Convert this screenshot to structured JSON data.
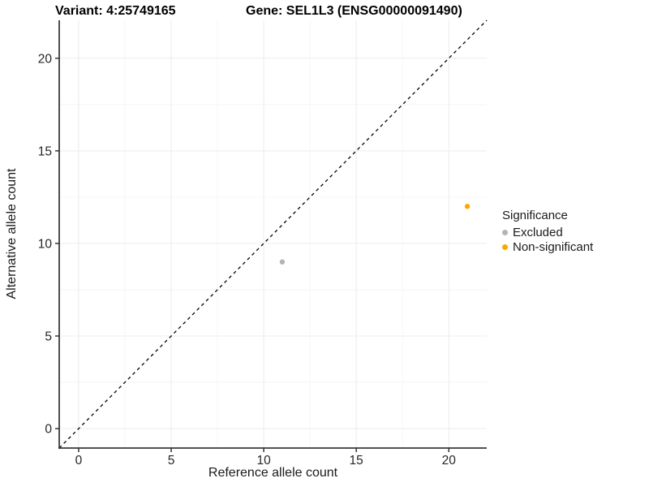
{
  "titles": {
    "variant": "Variant: 4:25749165",
    "gene": "Gene: SEL1L3 (ENSG00000091490)"
  },
  "chart_data": {
    "type": "scatter",
    "xlabel": "Reference allele count",
    "ylabel": "Alternative allele count",
    "xlim": [
      -1.05,
      22.05
    ],
    "ylim": [
      -1.05,
      22.05
    ],
    "x_ticks": [
      0,
      5,
      10,
      15,
      20
    ],
    "y_ticks": [
      0,
      5,
      10,
      15,
      20
    ],
    "x_minor_ticks": [
      2.5,
      7.5,
      12.5,
      17.5
    ],
    "y_minor_ticks": [
      2.5,
      7.5,
      12.5,
      17.5
    ],
    "grid": true,
    "legend": {
      "title": "Significance",
      "position": "right"
    },
    "identity_line": {
      "style": "dashed",
      "color": "#000000",
      "from": [
        -1.05,
        -1.05
      ],
      "to": [
        22.05,
        22.05
      ]
    },
    "series": [
      {
        "name": "Excluded",
        "color": "#B4B4B4",
        "points": [
          {
            "x": 11,
            "y": 9
          }
        ]
      },
      {
        "name": "Non-significant",
        "color": "#FFA500",
        "points": [
          {
            "x": 21,
            "y": 12
          }
        ]
      }
    ],
    "style_colors": {
      "grid_major": "#ECECEC",
      "grid_minor": "#F6F6F6",
      "axis_line": "#3A3A3A",
      "tick_mark": "#333333",
      "tick_label": "#262626"
    }
  }
}
